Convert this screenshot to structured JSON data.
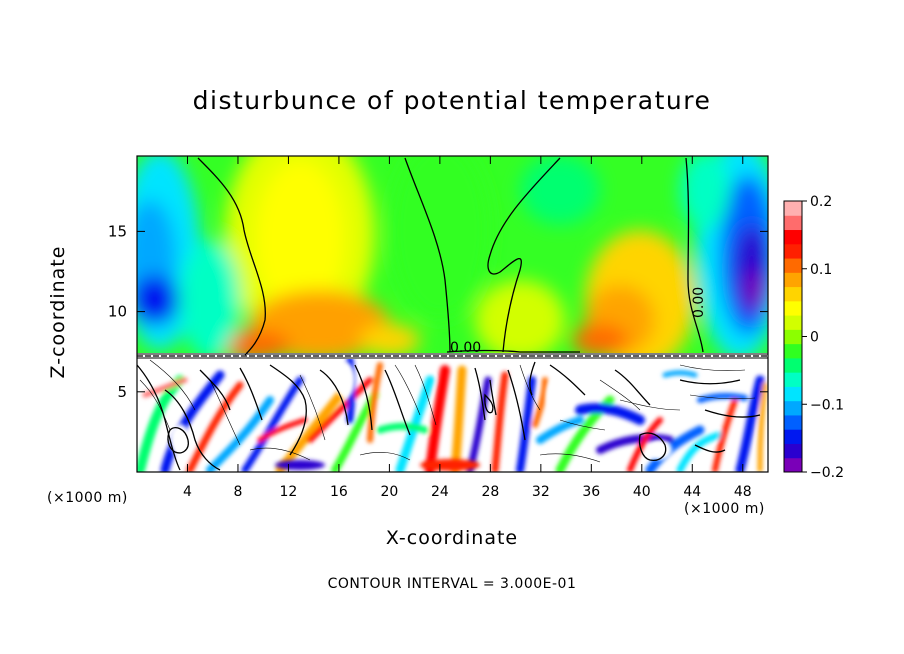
{
  "chart_data": {
    "type": "heatmap",
    "title": "disturbunce of potential temperature",
    "xlabel": "X-coordinate",
    "ylabel": "Z-coordinate",
    "x_unit_left": "(×1000 m)",
    "x_unit_right": "(×1000 m)",
    "xlim": [
      0,
      50
    ],
    "ylim": [
      0,
      19.7
    ],
    "x_ticks": [
      4,
      8,
      12,
      16,
      20,
      24,
      28,
      32,
      36,
      40,
      44,
      48
    ],
    "y_ticks": [
      5,
      10,
      15
    ],
    "colorbar": {
      "min": -0.2,
      "max": 0.2,
      "tick_values": [
        0.2,
        0.1,
        0,
        -0.1,
        -0.2
      ],
      "tick_labels": [
        "0.2",
        "0.1",
        "0",
        "−0.1",
        "−0.2"
      ],
      "colors": [
        "#7a00b8",
        "#2a00cf",
        "#0018f0",
        "#0060ff",
        "#00a8ff",
        "#00e4ff",
        "#00ffc4",
        "#00ff70",
        "#30ff20",
        "#8cff00",
        "#d2ff00",
        "#ffff00",
        "#ffd400",
        "#ffa400",
        "#ff6a00",
        "#ff2000",
        "#ff0000",
        "#ff6c6c",
        "#ffb0b0"
      ]
    },
    "contour_labels": [
      "0.00",
      "0.00"
    ],
    "contour_interval": "CONTOUR INTERVAL = 3.000E-01",
    "inversion_height": 7.3
  }
}
